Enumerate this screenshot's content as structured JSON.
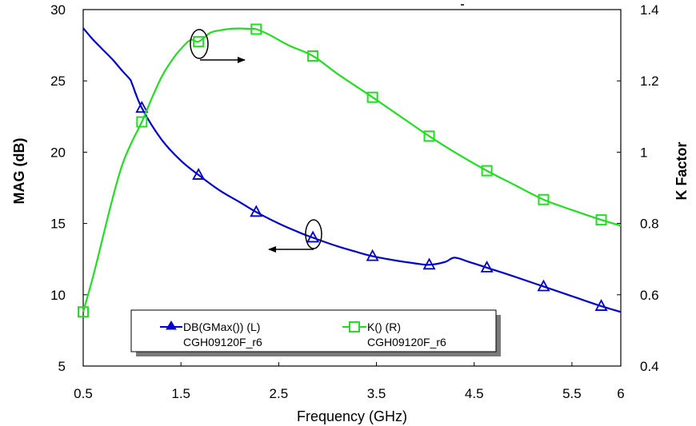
{
  "chart_data": {
    "type": "line",
    "xlabel": "Frequency (GHz)",
    "ylabel": "MAG (dB)",
    "y2label": "K Factor",
    "xlim": [
      0.5,
      6
    ],
    "ylim": [
      5,
      30
    ],
    "y2lim": [
      0.4,
      1.4
    ],
    "xticks": [
      "0.5",
      "1.5",
      "2.5",
      "3.5",
      "4.5",
      "5.5",
      "6"
    ],
    "yticks": [
      "5",
      "10",
      "15",
      "20",
      "25",
      "30"
    ],
    "y2ticks": [
      "0.4",
      "0.6",
      "0.8",
      "1",
      "1.2",
      "1.4"
    ],
    "grid": false,
    "legend_position": "bottom-left",
    "series": [
      {
        "name": "DB(GMax()) (L)",
        "sub": "CGH09120F_r6",
        "axis": "left",
        "color": "#0000cc",
        "marker": "triangle",
        "x": [
          0.5,
          0.6,
          0.7,
          0.8,
          0.9,
          0.98,
          1.0,
          1.1,
          1.3,
          1.5,
          1.68,
          1.9,
          2.1,
          2.27,
          2.5,
          2.7,
          2.85,
          3.1,
          3.3,
          3.46,
          3.7,
          3.9,
          4.04,
          4.2,
          4.3,
          4.45,
          4.63,
          4.9,
          5.2,
          5.5,
          5.8,
          6.0
        ],
        "y": [
          28.7,
          27.9,
          27.2,
          26.5,
          25.7,
          25.1,
          24.8,
          23.1,
          20.9,
          19.4,
          18.4,
          17.3,
          16.5,
          15.8,
          15.0,
          14.4,
          14.0,
          13.4,
          13.0,
          12.7,
          12.4,
          12.2,
          12.1,
          12.3,
          12.6,
          12.3,
          11.9,
          11.3,
          10.6,
          9.9,
          9.2,
          8.8
        ],
        "marker_x": [
          1.1,
          1.68,
          2.27,
          2.85,
          3.46,
          4.04,
          4.63,
          5.21,
          5.8
        ]
      },
      {
        "name": "K() (R)",
        "sub": "CGH09120F_r6",
        "axis": "right",
        "color": "#22dd22",
        "marker": "square",
        "x": [
          0.5,
          0.6,
          0.7,
          0.8,
          0.9,
          1.0,
          1.1,
          1.2,
          1.3,
          1.4,
          1.5,
          1.6,
          1.68,
          1.8,
          1.9,
          2.0,
          2.1,
          2.2,
          2.27,
          2.4,
          2.6,
          2.85,
          3.1,
          3.46,
          3.8,
          4.04,
          4.3,
          4.63,
          4.9,
          5.21,
          5.5,
          5.8,
          6.0
        ],
        "y": [
          0.552,
          0.65,
          0.76,
          0.87,
          0.965,
          1.03,
          1.085,
          1.15,
          1.21,
          1.255,
          1.29,
          1.315,
          1.31,
          1.335,
          1.342,
          1.346,
          1.347,
          1.346,
          1.345,
          1.33,
          1.3,
          1.27,
          1.22,
          1.154,
          1.09,
          1.045,
          1.0,
          0.948,
          0.91,
          0.867,
          0.838,
          0.81,
          0.794
        ],
        "marker_x": [
          0.5,
          1.1,
          1.68,
          2.27,
          2.85,
          3.46,
          4.04,
          4.63,
          5.21,
          5.8
        ]
      }
    ]
  }
}
